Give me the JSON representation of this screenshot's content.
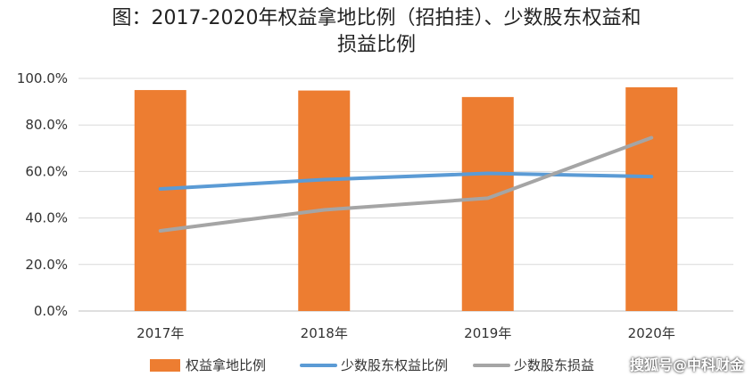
{
  "title": {
    "line1": "图：2017-2020年权益拿地比例（招拍挂）、少数股东权益和",
    "line2": "损益比例"
  },
  "watermark": "搜狐号@中科财金",
  "colors": {
    "bar": "#ED7D31",
    "line_minority_equity": "#5B9BD5",
    "line_minority_profit": "#A5A5A5",
    "grid": "#D9D9D9"
  },
  "chart_data": {
    "type": "bar",
    "categories": [
      "2017年",
      "2018年",
      "2019年",
      "2020年"
    ],
    "ylim": [
      0,
      100
    ],
    "yticks": [
      "0.0%",
      "20.0%",
      "40.0%",
      "60.0%",
      "80.0%",
      "100.0%"
    ],
    "grid": true,
    "legend_position": "bottom",
    "series": [
      {
        "name": "权益拿地比例",
        "type": "bar",
        "values": [
          95.0,
          94.8,
          92.0,
          96.2
        ]
      },
      {
        "name": "少数股东权益比例",
        "type": "line",
        "values": [
          52.5,
          56.5,
          59.2,
          57.8
        ]
      },
      {
        "name": "少数股东损益",
        "type": "line",
        "values": [
          34.5,
          43.5,
          48.5,
          74.5
        ]
      }
    ]
  }
}
